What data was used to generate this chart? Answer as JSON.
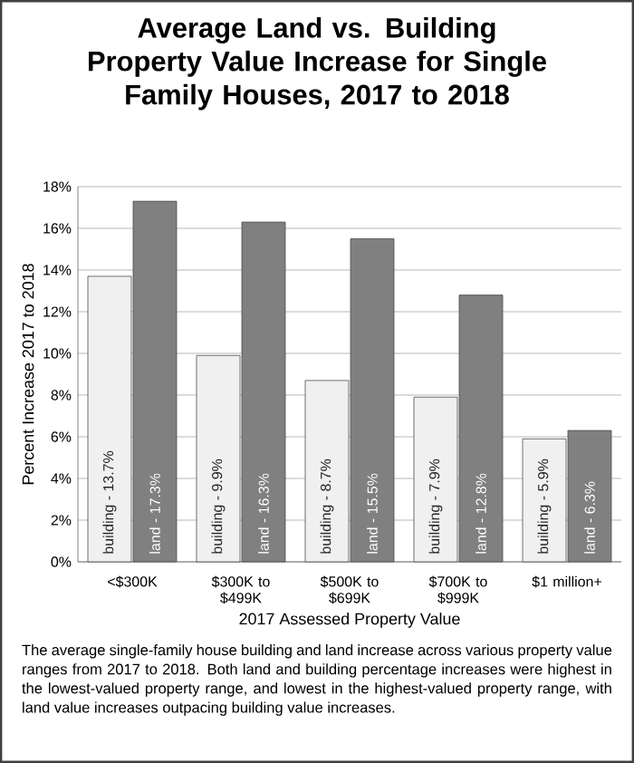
{
  "chart_data": {
    "type": "bar",
    "title": "Average Land vs. Building Property Value Increase for Single Family Houses, 2017 to 2018",
    "xlabel": "2017 Assessed Property Value",
    "ylabel": "Percent Increase 2017 to 2018",
    "categories": [
      "<$300K",
      "$300K to $499K",
      "$500K to $699K",
      "$700K to $999K",
      "$1 million+"
    ],
    "series": [
      {
        "name": "building -",
        "color": "#f0f0f0",
        "values": [
          13.7,
          9.9,
          8.7,
          7.9,
          5.9
        ],
        "value_labels": [
          "13.7%",
          "9.9%",
          "8.7%",
          "7.9%",
          "5.9%"
        ]
      },
      {
        "name": "land -",
        "color": "#808080",
        "values": [
          17.3,
          16.3,
          15.5,
          12.8,
          6.3
        ],
        "value_labels": [
          "17.3%",
          "16.3%",
          "15.5%",
          "12.8%",
          "6.3%"
        ]
      }
    ],
    "ylim": [
      0,
      18
    ],
    "yticks": [
      {
        "value": 0,
        "label": "0%"
      },
      {
        "value": 2,
        "label": "2%"
      },
      {
        "value": 4,
        "label": "4%"
      },
      {
        "value": 6,
        "label": "6%"
      },
      {
        "value": 8,
        "label": "8%"
      },
      {
        "value": 10,
        "label": "10%"
      },
      {
        "value": 12,
        "label": "12%"
      },
      {
        "value": 14,
        "label": "14%"
      },
      {
        "value": 16,
        "label": "16%"
      },
      {
        "value": 18,
        "label": "18%"
      }
    ],
    "grid": "y",
    "annotations": [
      "The average single-family house building and land increase across various property value ranges from 2017 to 2018. Both land and building percentage increases were highest in the lowest-valued property range, and lowest in the highest-valued property range, with land value increases outpacing building value increases."
    ]
  }
}
